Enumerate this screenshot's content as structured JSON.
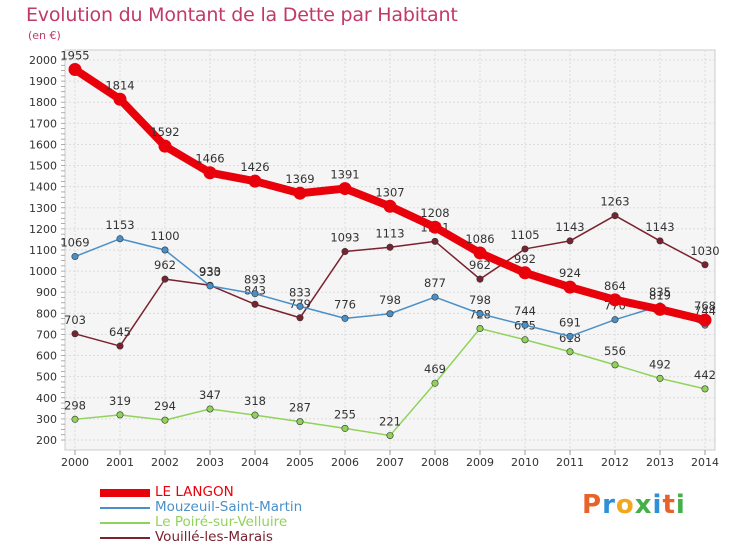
{
  "title": "Evolution du Montant de la Dette par Habitant",
  "subtitle": "(en €)",
  "logo": {
    "text": "Proxiti",
    "colors": [
      "#e8632a",
      "#2f8fd8",
      "#f2a81d",
      "#44b048",
      "#2f8fd8",
      "#e8632a",
      "#44b048"
    ]
  },
  "chart_data": {
    "type": "line",
    "x": [
      "2000",
      "2001",
      "2002",
      "2003",
      "2004",
      "2005",
      "2006",
      "2007",
      "2008",
      "2009",
      "2010",
      "2011",
      "2012",
      "2013",
      "2014"
    ],
    "ylim": [
      200,
      2000
    ],
    "yticks": [
      200,
      300,
      400,
      500,
      600,
      700,
      800,
      900,
      1000,
      1100,
      1200,
      1300,
      1400,
      1500,
      1600,
      1700,
      1800,
      1900,
      2000
    ],
    "grid": true,
    "legend_position": "bottom-left",
    "series": [
      {
        "name": "Vouillé-les-Marais",
        "color": "#7a2230",
        "values": [
          703,
          645,
          962,
          933,
          843,
          779,
          1093,
          1113,
          1141,
          962,
          1105,
          1143,
          1263,
          1143,
          1030
        ]
      },
      {
        "name": "Le Poiré-sur-Velluire",
        "color": "#90d35a",
        "values": [
          298,
          319,
          294,
          347,
          318,
          287,
          255,
          221,
          469,
          728,
          675,
          618,
          556,
          492,
          442
        ]
      },
      {
        "name": "Mouzeuil-Saint-Martin",
        "color": "#4a90c8",
        "values": [
          1069,
          1153,
          1100,
          930,
          893,
          833,
          776,
          798,
          877,
          798,
          744,
          691,
          770,
          835,
          744
        ]
      },
      {
        "name": "LE LANGON",
        "color": "#e8000a",
        "values": [
          1955,
          1814,
          1592,
          1466,
          1426,
          1369,
          1391,
          1307,
          1208,
          1086,
          992,
          924,
          864,
          819,
          768
        ]
      }
    ]
  }
}
